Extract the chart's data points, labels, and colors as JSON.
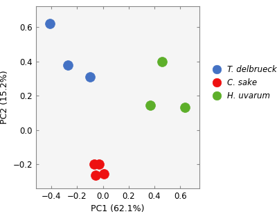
{
  "blue_points": [
    [
      -0.41,
      0.62
    ],
    [
      -0.27,
      0.38
    ],
    [
      -0.1,
      0.31
    ]
  ],
  "red_points": [
    [
      -0.07,
      -0.2
    ],
    [
      -0.03,
      -0.2
    ],
    [
      -0.055,
      -0.265
    ],
    [
      0.01,
      -0.255
    ]
  ],
  "green_points": [
    [
      0.46,
      0.4
    ],
    [
      0.37,
      0.145
    ],
    [
      0.635,
      0.13
    ]
  ],
  "blue_color": "#4472C4",
  "red_color": "#EE1111",
  "green_color": "#5DAF2A",
  "xlabel": "PC1 (62.1%)",
  "ylabel": "PC2 (15.2%)",
  "xlim": [
    -0.52,
    0.75
  ],
  "ylim": [
    -0.34,
    0.72
  ],
  "xticks": [
    -0.4,
    -0.2,
    0.0,
    0.2,
    0.4,
    0.6
  ],
  "yticks": [
    -0.2,
    0.0,
    0.2,
    0.4,
    0.6
  ],
  "legend_labels": [
    "T. delbrueckii",
    "C. sake",
    "H. uvarum"
  ],
  "marker_size": 100,
  "font_size": 8.5,
  "legend_font_size": 8.5,
  "axis_label_font_size": 9,
  "bg_color": "#f5f5f5",
  "spine_color": "#888888"
}
